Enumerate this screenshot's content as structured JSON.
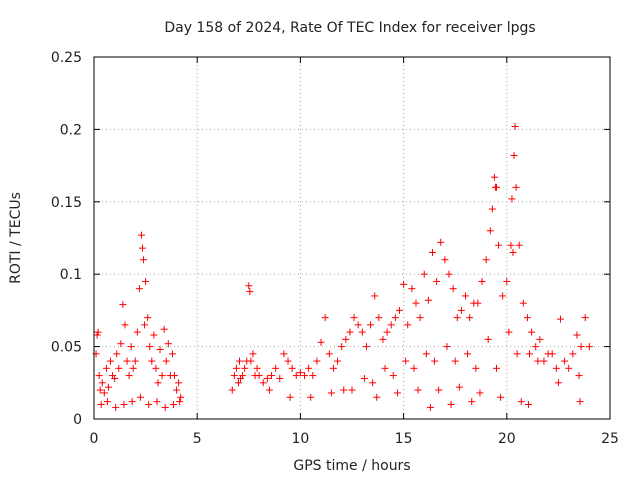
{
  "chart_data": {
    "type": "scatter",
    "title": "Day 158 of 2024, Rate Of TEC Index for receiver lpgs",
    "xlabel": "GPS time / hours",
    "ylabel": "ROTI / TECUs",
    "xlim": [
      0,
      25
    ],
    "ylim": [
      0,
      0.25
    ],
    "xticks": [
      0,
      5,
      10,
      15,
      20,
      25
    ],
    "xtick_labels": [
      "0",
      "5",
      "10",
      "15",
      "20",
      "25"
    ],
    "yticks": [
      0,
      0.05,
      0.1,
      0.15,
      0.2,
      0.25
    ],
    "ytick_labels": [
      "0",
      "0.05",
      "0.1",
      "0.15",
      "0.2",
      "0.25"
    ],
    "grid": true,
    "marker": "plus",
    "series": [
      {
        "name": "ROTI",
        "color": "#ff0000",
        "x": [
          0.1,
          0.15,
          0.2,
          0.25,
          0.3,
          0.4,
          0.5,
          0.6,
          0.7,
          0.8,
          0.9,
          1.0,
          1.1,
          1.2,
          1.3,
          1.4,
          1.5,
          1.6,
          1.7,
          1.8,
          1.9,
          2.0,
          2.1,
          2.2,
          2.3,
          2.35,
          2.4,
          2.45,
          2.5,
          2.6,
          2.7,
          2.8,
          2.9,
          3.0,
          3.1,
          3.2,
          3.3,
          3.4,
          3.5,
          3.6,
          3.7,
          3.8,
          3.9,
          4.0,
          4.1,
          4.2,
          0.35,
          0.65,
          1.05,
          1.45,
          1.85,
          2.25,
          2.65,
          3.05,
          3.45,
          3.85,
          4.15,
          6.7,
          6.8,
          6.9,
          7.0,
          7.1,
          7.2,
          7.3,
          7.4,
          7.5,
          7.55,
          7.6,
          7.7,
          7.8,
          7.9,
          8.0,
          8.2,
          8.4,
          8.6,
          8.8,
          9.0,
          9.2,
          9.4,
          9.6,
          9.8,
          10.0,
          10.2,
          10.4,
          10.6,
          10.8,
          11.0,
          11.2,
          11.4,
          11.6,
          11.8,
          12.0,
          12.2,
          12.4,
          12.6,
          12.8,
          13.0,
          13.2,
          13.4,
          13.6,
          13.8,
          14.0,
          14.2,
          14.4,
          14.6,
          14.8,
          15.0,
          15.2,
          15.4,
          15.6,
          15.8,
          16.0,
          16.2,
          16.4,
          16.6,
          16.8,
          17.0,
          17.2,
          17.4,
          17.6,
          17.8,
          18.0,
          18.2,
          18.4,
          18.6,
          18.8,
          19.0,
          19.2,
          19.3,
          19.4,
          19.5,
          19.6,
          19.8,
          20.0,
          20.2,
          20.3,
          20.35,
          20.4,
          20.45,
          20.6,
          20.8,
          21.0,
          21.2,
          21.4,
          21.6,
          21.8,
          22.0,
          22.2,
          22.4,
          22.6,
          22.8,
          23.0,
          23.2,
          23.4,
          23.6,
          23.8,
          24.0,
          7.05,
          8.5,
          9.5,
          10.5,
          11.5,
          12.5,
          13.5,
          14.5,
          15.5,
          16.5,
          17.5,
          18.5,
          19.5,
          20.5,
          21.5,
          22.5,
          23.5,
          12.1,
          13.1,
          14.1,
          15.1,
          16.1,
          17.1,
          18.1,
          19.1,
          20.1,
          21.1,
          13.7,
          14.7,
          15.7,
          16.7,
          17.7,
          18.7,
          19.7,
          20.7,
          16.3,
          17.3,
          18.3,
          19.45,
          20.25,
          21.05,
          23.55
        ],
        "y": [
          0.045,
          0.058,
          0.06,
          0.03,
          0.02,
          0.025,
          0.018,
          0.035,
          0.022,
          0.04,
          0.03,
          0.028,
          0.045,
          0.035,
          0.052,
          0.079,
          0.065,
          0.04,
          0.03,
          0.05,
          0.035,
          0.04,
          0.06,
          0.09,
          0.127,
          0.118,
          0.11,
          0.065,
          0.095,
          0.07,
          0.05,
          0.04,
          0.058,
          0.035,
          0.025,
          0.048,
          0.03,
          0.062,
          0.04,
          0.052,
          0.03,
          0.045,
          0.03,
          0.02,
          0.025,
          0.015,
          0.01,
          0.012,
          0.008,
          0.01,
          0.012,
          0.015,
          0.01,
          0.012,
          0.008,
          0.01,
          0.012,
          0.02,
          0.03,
          0.035,
          0.025,
          0.028,
          0.03,
          0.035,
          0.04,
          0.092,
          0.088,
          0.04,
          0.045,
          0.03,
          0.035,
          0.03,
          0.025,
          0.028,
          0.03,
          0.035,
          0.028,
          0.045,
          0.04,
          0.035,
          0.03,
          0.032,
          0.03,
          0.035,
          0.03,
          0.04,
          0.053,
          0.07,
          0.045,
          0.035,
          0.04,
          0.05,
          0.055,
          0.06,
          0.07,
          0.065,
          0.06,
          0.05,
          0.065,
          0.085,
          0.07,
          0.055,
          0.06,
          0.065,
          0.07,
          0.075,
          0.093,
          0.065,
          0.09,
          0.08,
          0.07,
          0.1,
          0.082,
          0.115,
          0.095,
          0.122,
          0.11,
          0.1,
          0.09,
          0.07,
          0.075,
          0.085,
          0.07,
          0.08,
          0.08,
          0.095,
          0.11,
          0.13,
          0.145,
          0.167,
          0.16,
          0.12,
          0.085,
          0.095,
          0.12,
          0.115,
          0.182,
          0.202,
          0.16,
          0.12,
          0.08,
          0.07,
          0.06,
          0.05,
          0.055,
          0.04,
          0.045,
          0.045,
          0.035,
          0.069,
          0.04,
          0.035,
          0.045,
          0.058,
          0.05,
          0.07,
          0.05,
          0.04,
          0.02,
          0.015,
          0.015,
          0.018,
          0.02,
          0.025,
          0.03,
          0.035,
          0.04,
          0.04,
          0.035,
          0.035,
          0.045,
          0.04,
          0.025,
          0.03,
          0.02,
          0.028,
          0.035,
          0.04,
          0.045,
          0.05,
          0.045,
          0.055,
          0.06,
          0.045,
          0.015,
          0.018,
          0.02,
          0.02,
          0.022,
          0.018,
          0.015,
          0.012,
          0.008,
          0.01,
          0.012,
          0.16,
          0.152,
          0.01,
          0.012
        ]
      }
    ]
  }
}
